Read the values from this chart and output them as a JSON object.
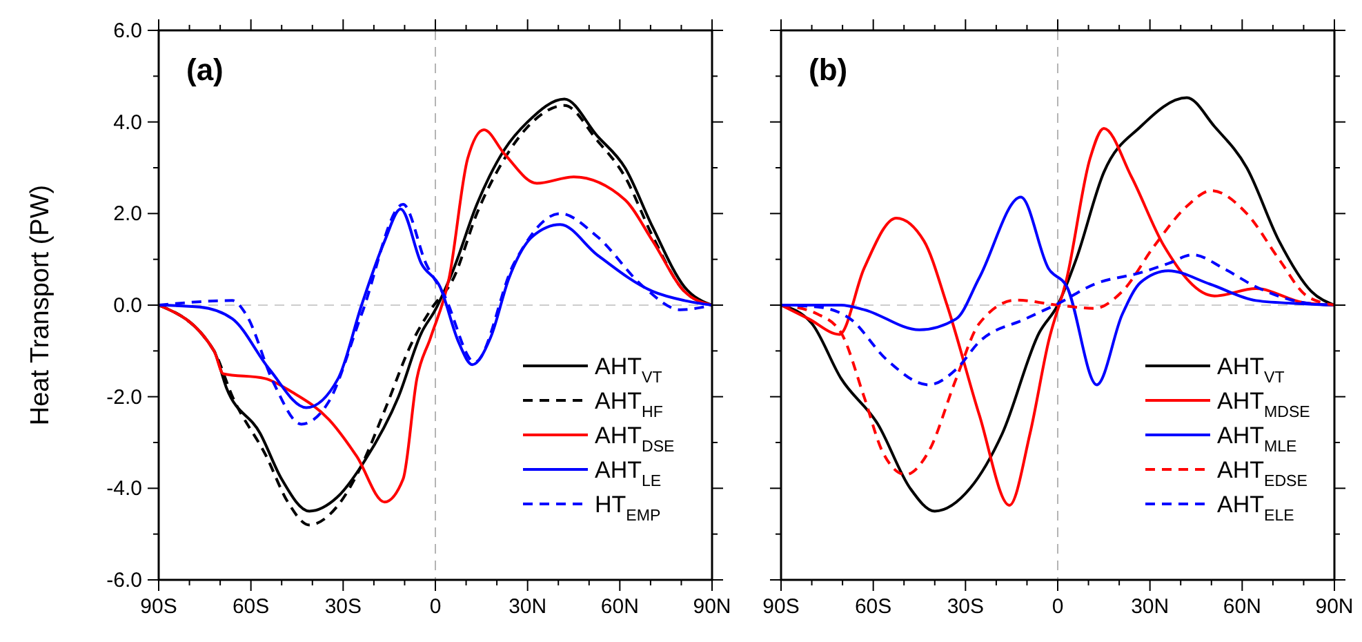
{
  "chart_data": [
    {
      "type": "line",
      "title": "(a)",
      "ylabel": "Heat Transport (PW)",
      "xlim": [
        -90,
        90
      ],
      "ylim": [
        -6,
        6
      ],
      "xticks": [
        {
          "value": -90,
          "label": "90S"
        },
        {
          "value": -80,
          "label": null
        },
        {
          "value": -70,
          "label": null
        },
        {
          "value": -60,
          "label": "60S"
        },
        {
          "value": -50,
          "label": null
        },
        {
          "value": -40,
          "label": null
        },
        {
          "value": -30,
          "label": "30S"
        },
        {
          "value": -20,
          "label": null
        },
        {
          "value": -10,
          "label": null
        },
        0,
        {
          "value": 10,
          "label": null
        },
        {
          "value": 20,
          "label": null
        },
        {
          "value": 30,
          "label": "30N"
        },
        {
          "value": 40,
          "label": null
        },
        {
          "value": 50,
          "label": null
        },
        {
          "value": 60,
          "label": "60N"
        },
        {
          "value": 70,
          "label": null
        },
        {
          "value": 80,
          "label": null
        },
        {
          "value": 90,
          "label": "90N"
        }
      ],
      "yticks": [
        {
          "value": -6,
          "label": "-6.0"
        },
        {
          "value": -5,
          "label": null
        },
        {
          "value": -4,
          "label": "-4.0"
        },
        {
          "value": -3,
          "label": null
        },
        {
          "value": -2,
          "label": "-2.0"
        },
        {
          "value": -1,
          "label": null
        },
        {
          "value": 0,
          "label": "0.0"
        },
        {
          "value": 1,
          "label": null
        },
        {
          "value": 2,
          "label": "2.0"
        },
        {
          "value": 3,
          "label": null
        },
        {
          "value": 4,
          "label": "4.0"
        },
        {
          "value": 5,
          "label": null
        },
        {
          "value": 6,
          "label": "6.0"
        }
      ],
      "legend": "bottom right",
      "marker": "none",
      "ref_lines": [
        {
          "axis": "y",
          "value": 0,
          "color": "#cccccc",
          "line_style": "dashed"
        },
        {
          "axis": "x",
          "value": 0,
          "color": "#b4b4b4",
          "line_style": "dashed"
        }
      ],
      "series": [
        {
          "name": "AHT$_{VT}$",
          "color": "#000000",
          "line_style": "solid",
          "x": [
            -90,
            -72,
            -68,
            -57,
            -50,
            -41,
            -32,
            -23,
            -12,
            -4.5,
            0,
            6,
            13.5,
            22.5,
            30,
            42,
            52.6,
            61.7,
            70.7,
            81,
            90
          ],
          "values": [
            0,
            -1.0,
            -1.8,
            -2.8,
            -3.8,
            -4.5,
            -4.2,
            -3.4,
            -2.0,
            -0.6,
            -0.1,
            0.8,
            2.2,
            3.4,
            4.0,
            4.5,
            3.7,
            3.0,
            1.7,
            0.4,
            0
          ]
        },
        {
          "name": "AHT$_{HF}$",
          "color": "#000000",
          "line_style": "dashed",
          "x": [
            -90,
            -72,
            -66,
            -55,
            -48,
            -41,
            -32,
            -24,
            -16.5,
            -7.5,
            -1.5,
            6,
            13.5,
            22.5,
            31.6,
            42,
            52.6,
            61.7,
            70.7,
            81,
            90
          ],
          "values": [
            0,
            -1.0,
            -2.0,
            -3.3,
            -4.3,
            -4.8,
            -4.4,
            -3.5,
            -2.3,
            -0.8,
            -0.1,
            0.6,
            2.0,
            3.2,
            4.0,
            4.36,
            3.6,
            2.8,
            1.5,
            0.3,
            0
          ]
        },
        {
          "name": "AHT$_{DSE}$",
          "color": "#ff0000",
          "line_style": "solid",
          "x": [
            -90,
            -72,
            -69,
            -55.6,
            -46.6,
            -34.6,
            -25.6,
            -16.5,
            -10.5,
            -6,
            -1.5,
            4.5,
            10.5,
            15.8,
            22.5,
            33,
            45,
            61.7,
            70.7,
            81,
            90
          ],
          "values": [
            0,
            -1.0,
            -1.5,
            -1.6,
            -1.9,
            -2.5,
            -3.3,
            -4.3,
            -3.8,
            -1.6,
            -0.7,
            0.6,
            3.2,
            3.83,
            3.3,
            2.66,
            2.8,
            2.3,
            1.4,
            0.3,
            0
          ]
        },
        {
          "name": "AHT$_{LE}$",
          "color": "#0000ff",
          "line_style": "solid",
          "x": [
            -90,
            -76.7,
            -66,
            -54,
            -42,
            -31.6,
            -24,
            -16.5,
            -11.3,
            -4.5,
            1.5,
            7.5,
            12,
            18,
            24,
            31.6,
            40.6,
            52.6,
            70.7,
            81,
            90
          ],
          "values": [
            0,
            -0.04,
            -0.3,
            -1.4,
            -2.24,
            -1.6,
            0,
            1.4,
            2.1,
            0.9,
            0.4,
            -0.8,
            -1.3,
            -0.7,
            0.6,
            1.5,
            1.76,
            1.1,
            0.3,
            0.1,
            0
          ]
        },
        {
          "name": "HT$_{EMP}$",
          "color": "#0000ff",
          "line_style": "dashed",
          "x": [
            -90,
            -66,
            -61.6,
            -52.6,
            -43.6,
            -34.6,
            -24,
            -10.5,
            -3,
            3,
            12.8,
            25.5,
            40.6,
            52.6,
            67.7,
            79.7,
            90
          ],
          "values": [
            0,
            0.1,
            -0.2,
            -1.7,
            -2.6,
            -2.1,
            -0.2,
            2.2,
            0.9,
            0.2,
            -1.25,
            0.9,
            2.0,
            1.5,
            0.4,
            -0.1,
            0
          ]
        }
      ]
    },
    {
      "type": "line",
      "title": "(b)",
      "xlim": [
        -90,
        90
      ],
      "ylim": [
        -6,
        6
      ],
      "tick_labels": "x",
      "xticks": [
        {
          "value": -90,
          "label": "90S"
        },
        {
          "value": -80,
          "label": null
        },
        {
          "value": -70,
          "label": null
        },
        {
          "value": -60,
          "label": "60S"
        },
        {
          "value": -50,
          "label": null
        },
        {
          "value": -40,
          "label": null
        },
        {
          "value": -30,
          "label": "30S"
        },
        {
          "value": -20,
          "label": null
        },
        {
          "value": -10,
          "label": null
        },
        0,
        {
          "value": 10,
          "label": null
        },
        {
          "value": 20,
          "label": null
        },
        {
          "value": 30,
          "label": "30N"
        },
        {
          "value": 40,
          "label": null
        },
        {
          "value": 50,
          "label": null
        },
        {
          "value": 60,
          "label": "60N"
        },
        {
          "value": 70,
          "label": null
        },
        {
          "value": 80,
          "label": null
        },
        {
          "value": 90,
          "label": "90N"
        }
      ],
      "yticks": [
        {
          "value": -6,
          "label": null
        },
        {
          "value": -5,
          "label": null
        },
        {
          "value": -4,
          "label": null
        },
        {
          "value": -3,
          "label": null
        },
        {
          "value": -2,
          "label": null
        },
        {
          "value": -1,
          "label": null
        },
        {
          "value": 0,
          "label": null
        },
        {
          "value": 1,
          "label": null
        },
        {
          "value": 2,
          "label": null
        },
        {
          "value": 3,
          "label": null
        },
        {
          "value": 4,
          "label": null
        },
        {
          "value": 5,
          "label": null
        },
        {
          "value": 6,
          "label": null
        }
      ],
      "legend": "bottom right",
      "marker": "none",
      "ref_lines": [
        {
          "axis": "y",
          "value": 0,
          "color": "#cccccc",
          "line_style": "dashed"
        },
        {
          "axis": "x",
          "value": 0,
          "color": "#b4b4b4",
          "line_style": "dashed"
        }
      ],
      "series": [
        {
          "name": "AHT$_{VT}$",
          "color": "#000000",
          "line_style": "solid",
          "x": [
            -90,
            -80,
            -70.5,
            -58.5,
            -48,
            -40,
            -28.5,
            -18,
            -6,
            0,
            6,
            15,
            27,
            42,
            51,
            61.5,
            72,
            82.5,
            90
          ],
          "values": [
            0,
            -0.4,
            -1.6,
            -2.6,
            -4.0,
            -4.5,
            -4.0,
            -2.8,
            -0.6,
            0,
            1.0,
            2.9,
            3.9,
            4.53,
            3.9,
            3.0,
            1.4,
            0.3,
            0
          ]
        },
        {
          "name": "AHT$_{MDSE}$",
          "color": "#ff0000",
          "line_style": "solid",
          "x": [
            -90,
            -81,
            -71,
            -63,
            -52.5,
            -43.5,
            -36,
            -25.5,
            -15.7,
            -9,
            -3,
            3,
            10.5,
            15,
            24,
            34.5,
            51,
            64.5,
            79.5,
            90
          ],
          "values": [
            0,
            -0.3,
            -0.64,
            0.8,
            1.9,
            1.4,
            0,
            -2.4,
            -4.37,
            -2.8,
            -0.8,
            0.6,
            3.2,
            3.86,
            2.8,
            1.3,
            0.2,
            0.36,
            0.06,
            0
          ]
        },
        {
          "name": "AHT$_{MLE}$",
          "color": "#0000ff",
          "line_style": "solid",
          "x": [
            -90,
            -70.5,
            -63,
            -45,
            -33,
            -25.5,
            -12,
            -3,
            3,
            12.7,
            21,
            27,
            36,
            49.5,
            64.5,
            79.5,
            90
          ],
          "values": [
            0,
            0,
            -0.1,
            -0.54,
            -0.3,
            0.6,
            2.36,
            0.8,
            0.4,
            -1.74,
            -0.2,
            0.5,
            0.75,
            0.46,
            0.1,
            0.03,
            0
          ]
        },
        {
          "name": "AHT$_{EDSE}$",
          "color": "#ff0000",
          "line_style": "dashed",
          "x": [
            -90,
            -78,
            -70.5,
            -63,
            -57,
            -49.5,
            -42,
            -33,
            -25.5,
            -13.5,
            0,
            12,
            21,
            31.5,
            42,
            50,
            61.5,
            72,
            81,
            90
          ],
          "values": [
            0,
            -0.2,
            -0.6,
            -2.0,
            -3.2,
            -3.7,
            -3.2,
            -1.6,
            -0.4,
            0.11,
            0,
            -0.07,
            0.3,
            1.3,
            2.16,
            2.5,
            2.0,
            1.0,
            0.2,
            0
          ]
        },
        {
          "name": "AHT$_{ELE}$",
          "color": "#0000ff",
          "line_style": "dashed",
          "x": [
            -90,
            -78,
            -67.5,
            -55.5,
            -42,
            -33,
            -25.5,
            -10.5,
            0,
            12,
            27,
            36,
            44,
            54,
            64.5,
            79.5,
            90
          ],
          "values": [
            0,
            -0.04,
            -0.3,
            -1.2,
            -1.74,
            -1.4,
            -0.8,
            -0.3,
            0.03,
            0.46,
            0.71,
            0.91,
            1.1,
            0.8,
            0.4,
            0.06,
            0
          ]
        }
      ]
    }
  ]
}
